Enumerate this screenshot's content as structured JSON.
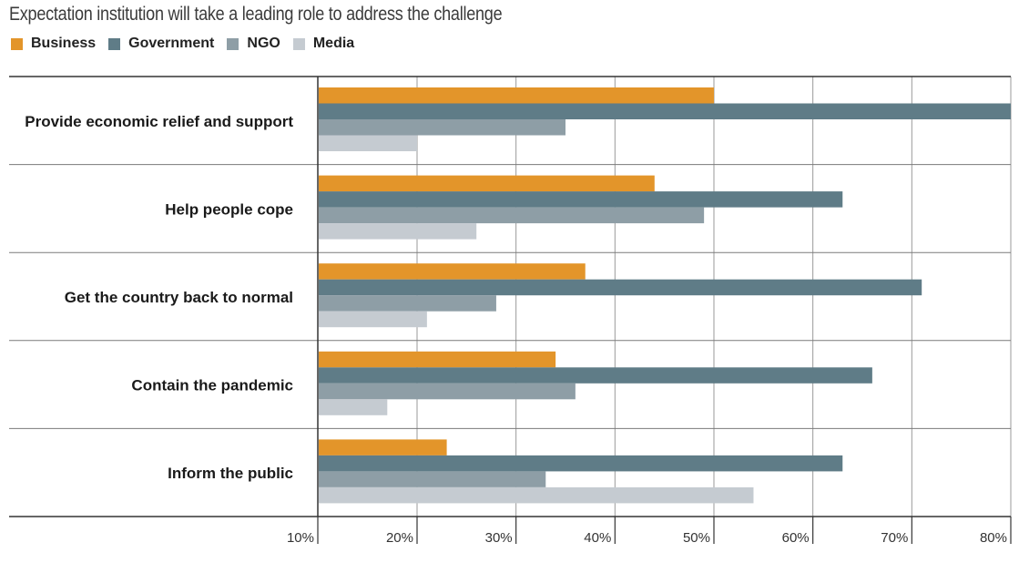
{
  "chart_data": {
    "type": "bar",
    "orientation": "horizontal",
    "title": "Expectation institution will take a leading role to address the challenge",
    "categories": [
      "Provide economic relief and support",
      "Help people cope",
      "Get the country back to normal",
      "Contain the pandemic",
      "Inform the public"
    ],
    "series": [
      {
        "name": "Business",
        "color": "#e3952a",
        "values": [
          50,
          44,
          37,
          34,
          23
        ]
      },
      {
        "name": "Government",
        "color": "#5f7c87",
        "values": [
          80,
          63,
          71,
          66,
          63
        ]
      },
      {
        "name": "NGO",
        "color": "#8e9ea6",
        "values": [
          35,
          49,
          28,
          36,
          33
        ]
      },
      {
        "name": "Media",
        "color": "#c5cbd1",
        "values": [
          20,
          26,
          21,
          17,
          54
        ]
      }
    ],
    "xlim": [
      10,
      80
    ],
    "xticks": [
      "10%",
      "20%",
      "30%",
      "40%",
      "50%",
      "60%",
      "70%",
      "80%"
    ],
    "xlabel": "",
    "ylabel": "",
    "legend_position": "top-left",
    "grid": true
  }
}
